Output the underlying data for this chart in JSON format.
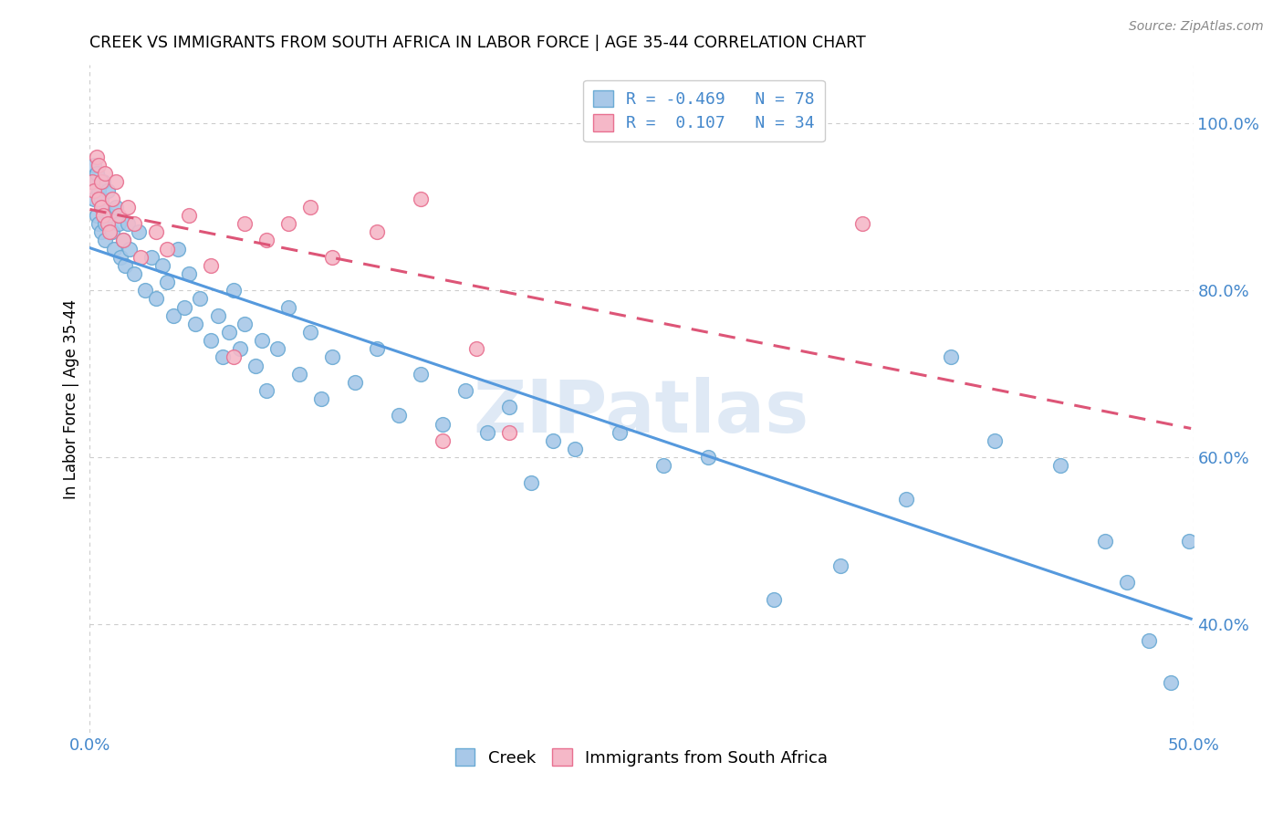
{
  "title": "CREEK VS IMMIGRANTS FROM SOUTH AFRICA IN LABOR FORCE | AGE 35-44 CORRELATION CHART",
  "source": "Source: ZipAtlas.com",
  "ylabel": "In Labor Force | Age 35-44",
  "xlim": [
    0.0,
    0.5
  ],
  "ylim": [
    0.27,
    1.07
  ],
  "legend_R1": "-0.469",
  "legend_N1": "78",
  "legend_R2": "0.107",
  "legend_N2": "34",
  "color_creek_fill": "#a8c8e8",
  "color_creek_edge": "#6aaad4",
  "color_immig_fill": "#f5b8c8",
  "color_immig_edge": "#e87090",
  "color_line_creek": "#5599dd",
  "color_line_immig": "#dd5577",
  "creek_x": [
    0.001,
    0.002,
    0.002,
    0.003,
    0.003,
    0.004,
    0.004,
    0.005,
    0.005,
    0.006,
    0.006,
    0.007,
    0.007,
    0.008,
    0.009,
    0.01,
    0.011,
    0.012,
    0.013,
    0.014,
    0.015,
    0.016,
    0.017,
    0.018,
    0.02,
    0.022,
    0.025,
    0.028,
    0.03,
    0.033,
    0.035,
    0.038,
    0.04,
    0.043,
    0.045,
    0.048,
    0.05,
    0.055,
    0.058,
    0.06,
    0.063,
    0.065,
    0.068,
    0.07,
    0.075,
    0.078,
    0.08,
    0.085,
    0.09,
    0.095,
    0.1,
    0.105,
    0.11,
    0.12,
    0.13,
    0.14,
    0.15,
    0.16,
    0.17,
    0.18,
    0.19,
    0.2,
    0.21,
    0.22,
    0.24,
    0.26,
    0.28,
    0.31,
    0.34,
    0.37,
    0.39,
    0.41,
    0.44,
    0.46,
    0.47,
    0.48,
    0.49,
    0.498
  ],
  "creek_y": [
    0.93,
    0.95,
    0.91,
    0.94,
    0.89,
    0.92,
    0.88,
    0.91,
    0.87,
    0.93,
    0.9,
    0.88,
    0.86,
    0.92,
    0.89,
    0.87,
    0.85,
    0.9,
    0.88,
    0.84,
    0.86,
    0.83,
    0.88,
    0.85,
    0.82,
    0.87,
    0.8,
    0.84,
    0.79,
    0.83,
    0.81,
    0.77,
    0.85,
    0.78,
    0.82,
    0.76,
    0.79,
    0.74,
    0.77,
    0.72,
    0.75,
    0.8,
    0.73,
    0.76,
    0.71,
    0.74,
    0.68,
    0.73,
    0.78,
    0.7,
    0.75,
    0.67,
    0.72,
    0.69,
    0.73,
    0.65,
    0.7,
    0.64,
    0.68,
    0.63,
    0.66,
    0.57,
    0.62,
    0.61,
    0.63,
    0.59,
    0.6,
    0.43,
    0.47,
    0.55,
    0.72,
    0.62,
    0.59,
    0.5,
    0.45,
    0.38,
    0.33,
    0.5
  ],
  "immig_x": [
    0.001,
    0.002,
    0.003,
    0.004,
    0.004,
    0.005,
    0.005,
    0.006,
    0.007,
    0.008,
    0.009,
    0.01,
    0.012,
    0.013,
    0.015,
    0.017,
    0.02,
    0.023,
    0.03,
    0.035,
    0.045,
    0.055,
    0.065,
    0.07,
    0.08,
    0.09,
    0.1,
    0.11,
    0.13,
    0.15,
    0.16,
    0.175,
    0.19,
    0.35
  ],
  "immig_y": [
    0.93,
    0.92,
    0.96,
    0.91,
    0.95,
    0.9,
    0.93,
    0.89,
    0.94,
    0.88,
    0.87,
    0.91,
    0.93,
    0.89,
    0.86,
    0.9,
    0.88,
    0.84,
    0.87,
    0.85,
    0.89,
    0.83,
    0.72,
    0.88,
    0.86,
    0.88,
    0.9,
    0.84,
    0.87,
    0.91,
    0.62,
    0.73,
    0.63,
    0.88
  ],
  "watermark": "ZIPatlas"
}
